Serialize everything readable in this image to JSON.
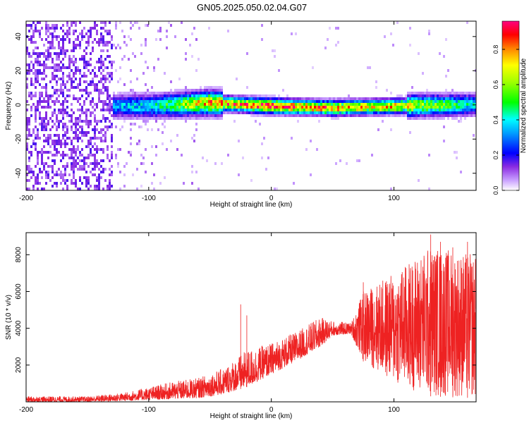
{
  "figure": {
    "title": "GN05.2025.050.02.04.G07"
  },
  "chart_data": [
    {
      "type": "heatmap",
      "xlabel": "Height of straight line (km)",
      "ylabel": "Frequency (Hz)",
      "xlim": [
        -200,
        167
      ],
      "ylim": [
        -50,
        49
      ],
      "xticks": [
        -200,
        -100,
        0,
        100
      ],
      "yticks": [
        -40,
        -20,
        0,
        20,
        40
      ],
      "colorbar": {
        "label": "Normalized spectral amplitude",
        "ticks": [
          0.0,
          0.2,
          0.4,
          0.6,
          0.8
        ],
        "range": [
          0,
          0.96
        ],
        "colormap": [
          "#ffffff",
          "#8a2be2",
          "#0000ff",
          "#00c8ff",
          "#00ff00",
          "#ffff00",
          "#ff0000",
          "#ff00ff"
        ]
      },
      "description_profile": {
        "noise_region_x": [
          -200,
          -130
        ],
        "signal_start_x": -130,
        "signal_center_hz": [
          {
            "x": -130,
            "hz": 0
          },
          {
            "x": -100,
            "hz": 0
          },
          {
            "x": -50,
            "hz": 2
          },
          {
            "x": 0,
            "hz": 0
          },
          {
            "x": 50,
            "hz": -1
          },
          {
            "x": 100,
            "hz": 0
          },
          {
            "x": 167,
            "hz": 1
          }
        ],
        "signal_peak_amplitude": [
          {
            "x": -130,
            "a": 0.35
          },
          {
            "x": -100,
            "a": 0.4
          },
          {
            "x": -50,
            "a": 0.8
          },
          {
            "x": 0,
            "a": 0.9
          },
          {
            "x": 50,
            "a": 0.8
          },
          {
            "x": 100,
            "a": 0.75
          },
          {
            "x": 167,
            "a": 0.4
          }
        ]
      }
    },
    {
      "type": "line",
      "xlabel": "Height of straight line (km)",
      "ylabel": "SNR (10 * v/v)",
      "xlim": [
        -200,
        167
      ],
      "ylim": [
        0,
        9200
      ],
      "xticks": [
        -200,
        -100,
        0,
        100
      ],
      "yticks": [
        2000,
        4000,
        6000,
        8000
      ],
      "color": "#ee2222",
      "series": [
        {
          "envelope": [
            {
              "x": -200,
              "lo": 0,
              "hi": 300
            },
            {
              "x": -150,
              "lo": 0,
              "hi": 300
            },
            {
              "x": -120,
              "lo": 50,
              "hi": 500
            },
            {
              "x": -100,
              "lo": 100,
              "hi": 800
            },
            {
              "x": -80,
              "lo": 150,
              "hi": 1100
            },
            {
              "x": -60,
              "lo": 200,
              "hi": 1300
            },
            {
              "x": -40,
              "lo": 400,
              "hi": 1800
            },
            {
              "x": -20,
              "lo": 800,
              "hi": 2800
            },
            {
              "x": 0,
              "lo": 1500,
              "hi": 3200
            },
            {
              "x": 20,
              "lo": 2200,
              "hi": 3800
            },
            {
              "x": 40,
              "lo": 3000,
              "hi": 4600
            },
            {
              "x": 50,
              "lo": 3600,
              "hi": 4400
            },
            {
              "x": 65,
              "lo": 3700,
              "hi": 4300
            },
            {
              "x": 75,
              "lo": 2200,
              "hi": 6000
            },
            {
              "x": 100,
              "lo": 1000,
              "hi": 7000
            },
            {
              "x": 130,
              "lo": 300,
              "hi": 8500
            },
            {
              "x": 167,
              "lo": 200,
              "hi": 8000
            }
          ],
          "spikes": [
            {
              "x": -25,
              "y": 5300
            },
            {
              "x": -20,
              "y": 4700
            },
            {
              "x": 75,
              "y": 6500
            },
            {
              "x": 130,
              "y": 9100
            },
            {
              "x": 138,
              "y": 8700
            },
            {
              "x": 148,
              "y": 8400
            },
            {
              "x": 160,
              "y": 8700
            }
          ]
        }
      ]
    }
  ]
}
